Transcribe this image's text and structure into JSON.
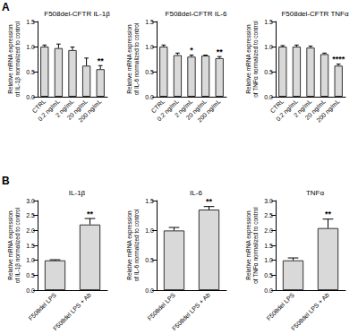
{
  "chart_data": [
    {
      "type": "bar",
      "title": "F508del-CFTR IL-1β",
      "annotations": [
        "A"
      ],
      "y_label": "Relative mRNA expression of IL-1β normalized to control",
      "categories": [
        "CTRL",
        "0.2 ng/mL",
        "2 ng/mL",
        "20 ng/mL",
        "200 ng/mL"
      ],
      "values": [
        1.0,
        0.97,
        0.93,
        0.62,
        0.55
      ],
      "errors": [
        0.03,
        0.08,
        0.06,
        0.15,
        0.07
      ],
      "significance": [
        null,
        null,
        null,
        null,
        "**"
      ],
      "color": "#d9d9d9",
      "grid": false,
      "ylim": [
        0,
        1.5
      ],
      "yticks": [
        {
          "value": 0,
          "label": "0.0"
        },
        {
          "value": 0.5,
          "label": "0.5"
        },
        {
          "value": 1,
          "label": "1.0"
        },
        {
          "value": 1.5,
          "label": "1.5"
        }
      ]
    },
    {
      "type": "bar",
      "title": "F508del-CFTR IL-6",
      "y_label": "Relative mRNA expression of IL-6 normalized to control",
      "categories": [
        "CTRL",
        "0.2 ng/mL",
        "2 ng/mL",
        "20 ng/mL",
        "200 ng/mL"
      ],
      "values": [
        1.0,
        0.83,
        0.8,
        0.82,
        0.77
      ],
      "errors": [
        0.03,
        0.04,
        0.03,
        0.01,
        0.03
      ],
      "significance": [
        null,
        null,
        "*",
        null,
        "**"
      ],
      "color": "#d9d9d9",
      "grid": false,
      "ylim": [
        0,
        1.5
      ],
      "yticks": [
        {
          "value": 0,
          "label": "0.0"
        },
        {
          "value": 0.5,
          "label": "0.5"
        },
        {
          "value": 1,
          "label": "1.0"
        },
        {
          "value": 1.5,
          "label": "1.5"
        }
      ]
    },
    {
      "type": "bar",
      "title": "F508del-CFTR TNFα",
      "y_label": "Relative mRNA expression of TNFα normalized to control",
      "categories": [
        "CTRL",
        "0.2 ng/mL",
        "2 ng/mL",
        "20 ng/mL",
        "200 ng/mL"
      ],
      "values": [
        1.0,
        1.0,
        0.98,
        0.85,
        0.62
      ],
      "errors": [
        0.02,
        0.03,
        0.03,
        0.02,
        0.03
      ],
      "significance": [
        null,
        null,
        null,
        null,
        "****"
      ],
      "color": "#d9d9d9",
      "grid": false,
      "ylim": [
        0,
        1.5
      ],
      "yticks": [
        {
          "value": 0,
          "label": "0.0"
        },
        {
          "value": 0.5,
          "label": "0.5"
        },
        {
          "value": 1,
          "label": "1.0"
        },
        {
          "value": 1.5,
          "label": "1.5"
        }
      ]
    },
    {
      "type": "bar",
      "title": "IL-1β",
      "annotations": [
        "B"
      ],
      "y_label": "Relative mRNA expression of IL-1β normalized to control",
      "categories": [
        "F508del LPS",
        "F508del LPS + Ab"
      ],
      "values": [
        1.0,
        2.2
      ],
      "errors": [
        0.02,
        0.2
      ],
      "significance": [
        null,
        "**"
      ],
      "color": "#d9d9d9",
      "grid": false,
      "ylim": [
        0,
        3
      ],
      "yticks": [
        {
          "value": 0,
          "label": "0.0"
        },
        {
          "value": 0.5,
          "label": "0.5"
        },
        {
          "value": 1,
          "label": "1.0"
        },
        {
          "value": 1.5,
          "label": "1.5"
        },
        {
          "value": 2,
          "label": "2.0"
        },
        {
          "value": 2.5,
          "label": "2.5"
        },
        {
          "value": 3,
          "label": "3.0"
        }
      ]
    },
    {
      "type": "bar",
      "title": "IL-6",
      "y_label": "Relative mRNA expression of IL-6 normalized to control",
      "categories": [
        "F508del LPS",
        "F508del LPS + Ab"
      ],
      "values": [
        1.0,
        1.35
      ],
      "errors": [
        0.05,
        0.05
      ],
      "significance": [
        null,
        "**"
      ],
      "color": "#d9d9d9",
      "grid": false,
      "ylim": [
        0,
        1.5
      ],
      "yticks": [
        {
          "value": 0,
          "label": "0.0"
        },
        {
          "value": 0.5,
          "label": "0.5"
        },
        {
          "value": 1,
          "label": "1.0"
        },
        {
          "value": 1.5,
          "label": "1.5"
        }
      ]
    },
    {
      "type": "bar",
      "title": "TNFα",
      "y_label": "Relative mRNA expression of TNFα normalized to control",
      "categories": [
        "F508del LPS",
        "F508del LPS + Ab"
      ],
      "values": [
        1.0,
        2.08
      ],
      "errors": [
        0.08,
        0.3
      ],
      "significance": [
        null,
        "**"
      ],
      "color": "#d9d9d9",
      "grid": false,
      "ylim": [
        0,
        3
      ],
      "yticks": [
        {
          "value": 0,
          "label": "0.0"
        },
        {
          "value": 0.5,
          "label": "0.5"
        },
        {
          "value": 1,
          "label": "1.0"
        },
        {
          "value": 1.5,
          "label": "1.5"
        },
        {
          "value": 2,
          "label": "2.0"
        },
        {
          "value": 2.5,
          "label": "2.5"
        },
        {
          "value": 3,
          "label": "3.0"
        }
      ]
    }
  ]
}
